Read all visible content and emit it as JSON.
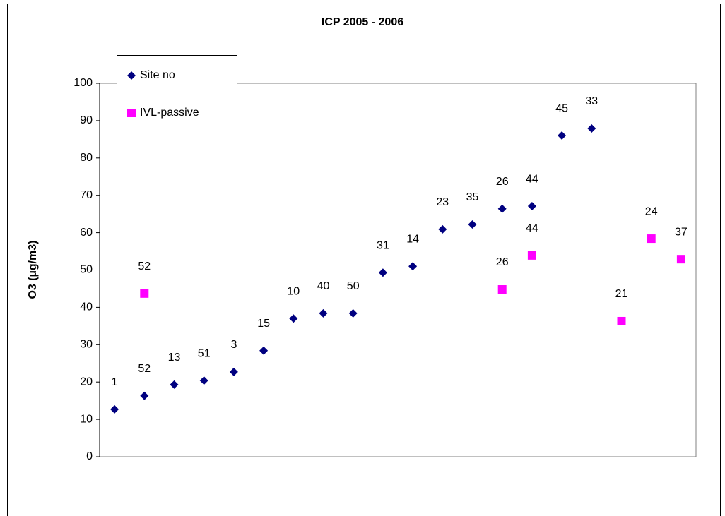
{
  "chart_data": {
    "type": "scatter",
    "title": "ICP 2005 - 2006",
    "y_label": "O3 (µg/m3)",
    "categories": [
      null,
      null,
      null,
      null,
      null,
      null,
      null,
      null,
      null,
      null,
      null,
      null,
      null,
      null,
      null,
      null,
      null,
      null,
      null,
      null
    ],
    "ylim": [
      0,
      100
    ],
    "yticks": [
      0,
      10,
      20,
      30,
      40,
      50,
      60,
      70,
      80,
      90,
      100
    ],
    "grid": false,
    "series": [
      {
        "name": "Site no",
        "color": "#000080",
        "marker": "diamond",
        "values": [
          12.7,
          16.3,
          19.3,
          20.4,
          22.7,
          28.4,
          37.0,
          38.4,
          38.4,
          49.3,
          51.0,
          60.9,
          62.2,
          66.4,
          67.1,
          86.0,
          87.9,
          null,
          null,
          null
        ],
        "point_labels": [
          "1",
          "52",
          "13",
          "51",
          "3",
          "15",
          "10",
          "40",
          "50",
          "31",
          "14",
          "23",
          "35",
          "26",
          "44",
          "45",
          "33",
          null,
          null,
          null
        ]
      },
      {
        "name": "IVL-passive",
        "color": "#ff00ff",
        "marker": "square",
        "values": [
          null,
          43.7,
          null,
          null,
          null,
          null,
          null,
          null,
          null,
          null,
          null,
          null,
          null,
          44.8,
          53.9,
          null,
          null,
          36.3,
          58.4,
          52.9
        ],
        "point_labels": [
          null,
          "52",
          null,
          null,
          null,
          null,
          null,
          null,
          null,
          null,
          null,
          null,
          null,
          "26",
          "44",
          null,
          null,
          "21",
          "24",
          "37"
        ]
      }
    ]
  }
}
